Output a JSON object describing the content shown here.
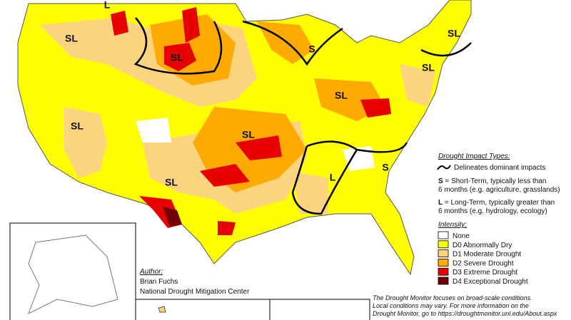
{
  "map_labels": [
    "L",
    "SL",
    "SL",
    "S",
    "SL",
    "SL",
    "SL",
    "SL",
    "SL",
    "SL",
    "L",
    "S"
  ],
  "impact_legend": {
    "title": "Drought Impact Types:",
    "line_label": "Delineates dominant impacts",
    "short_term": {
      "key": "S",
      "lines": [
        "= Short-Term, typically less than",
        "6 months (e.g. agriculture, grasslands)"
      ]
    },
    "long_term": {
      "key": "L",
      "lines": [
        "= Long-Term, typically greater than",
        "6 months (e.g. hydrology, ecology)"
      ]
    }
  },
  "intensity_legend": {
    "title": "Intensity:",
    "items": [
      {
        "label": "None",
        "color": "#ffffff"
      },
      {
        "label": "D0 Abnormally Dry",
        "color": "#ffff00"
      },
      {
        "label": "D1 Moderate Drought",
        "color": "#fcd37f"
      },
      {
        "label": "D2 Severe Drought",
        "color": "#ffaa00"
      },
      {
        "label": "D3 Extreme Drought",
        "color": "#e60000"
      },
      {
        "label": "D4 Exceptional Drought",
        "color": "#730000"
      }
    ]
  },
  "author": {
    "heading": "Author:",
    "name": "Brian Fuchs",
    "organization": "National Drought Mitigation Center"
  },
  "note": [
    "The Drought Monitor focuses on broad-scale conditions.",
    "Local conditions may vary. For more information on the",
    "Drought Monitor, go to https://droughtmonitor.unl.edu/About.aspx"
  ]
}
